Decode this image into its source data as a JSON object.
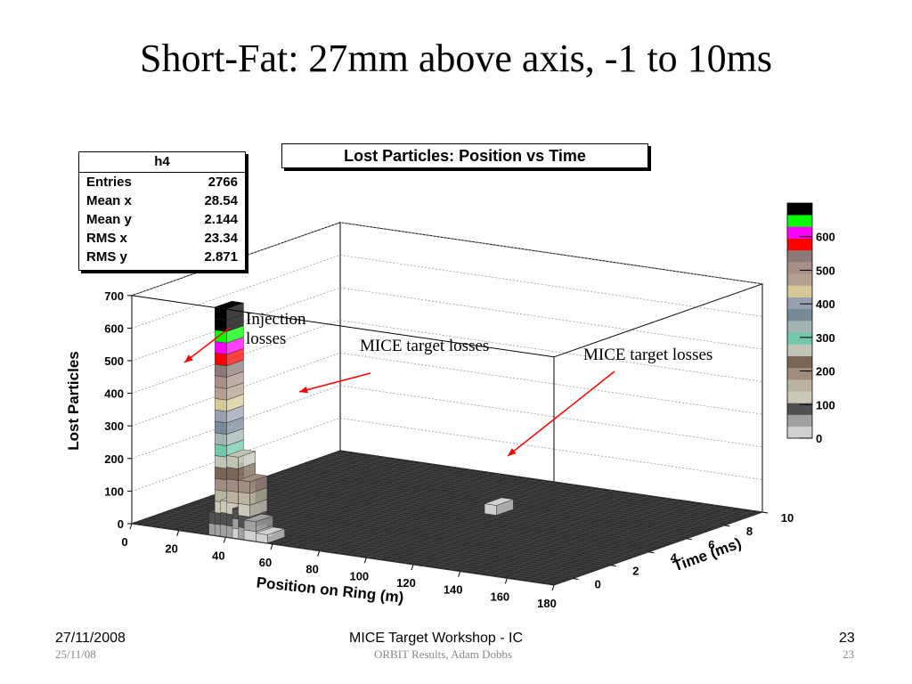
{
  "slide": {
    "title": "Short-Fat: 27mm above axis, -1 to 10ms"
  },
  "stats": {
    "name": "h4",
    "rows": [
      {
        "label": "Entries",
        "value": "2766"
      },
      {
        "label": "Mean x",
        "value": "28.54"
      },
      {
        "label": "Mean y",
        "value": "2.144"
      },
      {
        "label": "RMS x",
        "value": "23.34"
      },
      {
        "label": "RMS y",
        "value": "2.871"
      }
    ]
  },
  "annotations": {
    "injection_line1": "Injection",
    "injection_line2": "losses",
    "mice1": "MICE target losses",
    "mice2": "MICE target losses"
  },
  "footer": {
    "date": "27/11/2008",
    "center": "MICE Target Workshop - IC",
    "page": "23",
    "sub_date": "25/11/08",
    "sub_center": "ORBIT Results, Adam Dobbs",
    "sub_page": "23"
  },
  "chart_data": {
    "type": "lego3d",
    "title": "Lost Particles: Position vs Time",
    "xlabel": "Position on Ring (m)",
    "ylabel": "Time (ms)",
    "zlabel": "Lost Particles",
    "xlim": [
      0,
      180
    ],
    "ylim": [
      -1,
      10
    ],
    "zlim": [
      0,
      700
    ],
    "xticks": [
      0,
      20,
      40,
      60,
      80,
      100,
      120,
      140,
      160,
      180
    ],
    "yticks": [
      0,
      2,
      4,
      6,
      8,
      10
    ],
    "zticks": [
      0,
      100,
      200,
      300,
      400,
      500,
      600,
      700
    ],
    "palette_ticks": [
      0,
      100,
      200,
      300,
      400,
      500,
      600
    ],
    "palette_colors": [
      "#d0d0d0",
      "#a0a0a0",
      "#505050",
      "#ccc8b8",
      "#b8b4a0",
      "#a08c80",
      "#7a6656",
      "#c0c4b4",
      "#70c8a8",
      "#a4b4b4",
      "#788a98",
      "#98a0b0",
      "#d4c898",
      "#b4a090",
      "#a89088",
      "#8a7a78",
      "#ff0000",
      "#ff00ff",
      "#00ff00",
      "#000000"
    ],
    "bars": [
      {
        "x": 37.5,
        "t": -0.5,
        "z": 700
      },
      {
        "x": 42.5,
        "t": -0.5,
        "z": 250
      },
      {
        "x": 47.5,
        "t": -0.5,
        "z": 180
      },
      {
        "x": 40,
        "t": -0.5,
        "z": 110
      },
      {
        "x": 45,
        "t": -0.5,
        "z": 90
      },
      {
        "x": 35,
        "t": -0.5,
        "z": 70
      },
      {
        "x": 50,
        "t": -0.5,
        "z": 60
      },
      {
        "x": 55,
        "t": -0.5,
        "z": 25
      },
      {
        "x": 100,
        "t": 6,
        "z": 30
      }
    ]
  }
}
